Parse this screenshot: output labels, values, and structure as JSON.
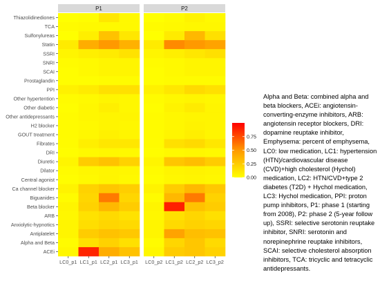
{
  "chart_data": {
    "type": "heatmap",
    "title": "",
    "xlabel": "",
    "ylabel": "",
    "panels": [
      {
        "name": "P1",
        "columns": [
          "LC0_p1",
          "LC1_p1",
          "LC2_p1",
          "LC3_p1"
        ]
      },
      {
        "name": "P2",
        "columns": [
          "LC0_p2",
          "LC1_p2",
          "LC2_p2",
          "LC3_p2"
        ]
      }
    ],
    "rows": [
      "Thiazolidinediones",
      "TCA",
      "Sulfonylureas",
      "Statin",
      "SSRI",
      "SNRI",
      "SCAI",
      "Prostaglandin",
      "PPI",
      "Other hypertention",
      "Other diabetic",
      "Other antidepressants",
      "H2 blocker",
      "GOUT treatment",
      "Fibrates",
      "DRI",
      "Diuretic",
      "Dilator",
      "Central agonist",
      "Ca channel blocker",
      "Biguanides",
      "Beta blocker",
      "ARB",
      "Anxiolytic-hypnotics",
      "Antiplatelet",
      "Alpha and Beta",
      "ACEi"
    ],
    "values": {
      "P1": [
        [
          0.0,
          0.01,
          0.12,
          0.03
        ],
        [
          0.02,
          0.03,
          0.03,
          0.03
        ],
        [
          0.0,
          0.08,
          0.3,
          0.12
        ],
        [
          0.1,
          0.4,
          0.5,
          0.38
        ],
        [
          0.05,
          0.08,
          0.1,
          0.14
        ],
        [
          0.02,
          0.03,
          0.05,
          0.05
        ],
        [
          0.01,
          0.03,
          0.05,
          0.05
        ],
        [
          0.01,
          0.01,
          0.02,
          0.02
        ],
        [
          0.07,
          0.1,
          0.15,
          0.15
        ],
        [
          0.02,
          0.03,
          0.05,
          0.04
        ],
        [
          0.01,
          0.04,
          0.08,
          0.04
        ],
        [
          0.02,
          0.04,
          0.05,
          0.05
        ],
        [
          0.02,
          0.03,
          0.05,
          0.04
        ],
        [
          0.02,
          0.04,
          0.07,
          0.05
        ],
        [
          0.02,
          0.08,
          0.12,
          0.12
        ],
        [
          0.01,
          0.03,
          0.04,
          0.03
        ],
        [
          0.05,
          0.25,
          0.3,
          0.22
        ],
        [
          0.02,
          0.04,
          0.05,
          0.04
        ],
        [
          0.01,
          0.03,
          0.05,
          0.03
        ],
        [
          0.06,
          0.22,
          0.28,
          0.24
        ],
        [
          0.02,
          0.2,
          0.6,
          0.2
        ],
        [
          0.05,
          0.22,
          0.35,
          0.25
        ],
        [
          0.04,
          0.14,
          0.18,
          0.14
        ],
        [
          0.05,
          0.16,
          0.2,
          0.18
        ],
        [
          0.05,
          0.25,
          0.3,
          0.27
        ],
        [
          0.02,
          0.15,
          0.22,
          0.15
        ],
        [
          0.04,
          0.88,
          0.4,
          0.3
        ]
      ],
      "P2": [
        [
          0.0,
          0.02,
          0.06,
          0.03
        ],
        [
          0.02,
          0.03,
          0.04,
          0.04
        ],
        [
          0.0,
          0.1,
          0.35,
          0.15
        ],
        [
          0.1,
          0.55,
          0.5,
          0.45
        ],
        [
          0.05,
          0.08,
          0.12,
          0.15
        ],
        [
          0.02,
          0.03,
          0.05,
          0.05
        ],
        [
          0.01,
          0.03,
          0.05,
          0.05
        ],
        [
          0.01,
          0.02,
          0.02,
          0.02
        ],
        [
          0.07,
          0.12,
          0.18,
          0.15
        ],
        [
          0.02,
          0.04,
          0.05,
          0.04
        ],
        [
          0.01,
          0.06,
          0.1,
          0.05
        ],
        [
          0.02,
          0.04,
          0.05,
          0.05
        ],
        [
          0.02,
          0.04,
          0.06,
          0.05
        ],
        [
          0.02,
          0.05,
          0.08,
          0.05
        ],
        [
          0.02,
          0.15,
          0.18,
          0.12
        ],
        [
          0.01,
          0.03,
          0.04,
          0.03
        ],
        [
          0.05,
          0.28,
          0.32,
          0.25
        ],
        [
          0.02,
          0.05,
          0.06,
          0.05
        ],
        [
          0.01,
          0.04,
          0.05,
          0.04
        ],
        [
          0.06,
          0.25,
          0.35,
          0.27
        ],
        [
          0.02,
          0.35,
          0.6,
          0.22
        ],
        [
          0.05,
          0.9,
          0.3,
          0.25
        ],
        [
          0.04,
          0.15,
          0.2,
          0.15
        ],
        [
          0.05,
          0.18,
          0.22,
          0.2
        ],
        [
          0.05,
          0.45,
          0.32,
          0.3
        ],
        [
          0.02,
          0.2,
          0.28,
          0.18
        ],
        [
          0.04,
          0.25,
          0.28,
          0.22
        ]
      ]
    },
    "colorbar": {
      "range": [
        0,
        1
      ],
      "ticks": [
        "0.75",
        "0.50",
        "0.25",
        "0.00"
      ],
      "tick_values": [
        0.75,
        0.5,
        0.25,
        0.0
      ],
      "colors": {
        "low": "#ffff00",
        "high": "#ff0000"
      }
    },
    "panel_strip_color": "#d9d9d9",
    "panel_background": "#ebebeb"
  },
  "caption": "Alpha and Beta: combined alpha and beta blockers, ACEi: angiotensin-converting-enzyme inhibitors, ARB: angiotensin receptor blockers, DRI: dopamine reuptake inhibitor, Emphysema: percent of emphysema, LC0: low medication, LC1: hypertension (HTN)/cardiovascular disease (CVD)+high cholesterol (Hychol) medication, LC2: HTN/CVD+type 2 diabetes (T2D) + Hychol medication, LC3: Hychol medication, PPI: proton pump inhibitors, P1: phase 1 (starting from 2008), P2: phase 2 (5-year follow up), SSRI: selective serotonin reuptake inhibitor, SNRI: serotonin and norepinephrine reuptake inhibitors, SCAI: selective cholesterol absorption inhibitors, TCA: tricyclic and tetracyclic antidepressants."
}
